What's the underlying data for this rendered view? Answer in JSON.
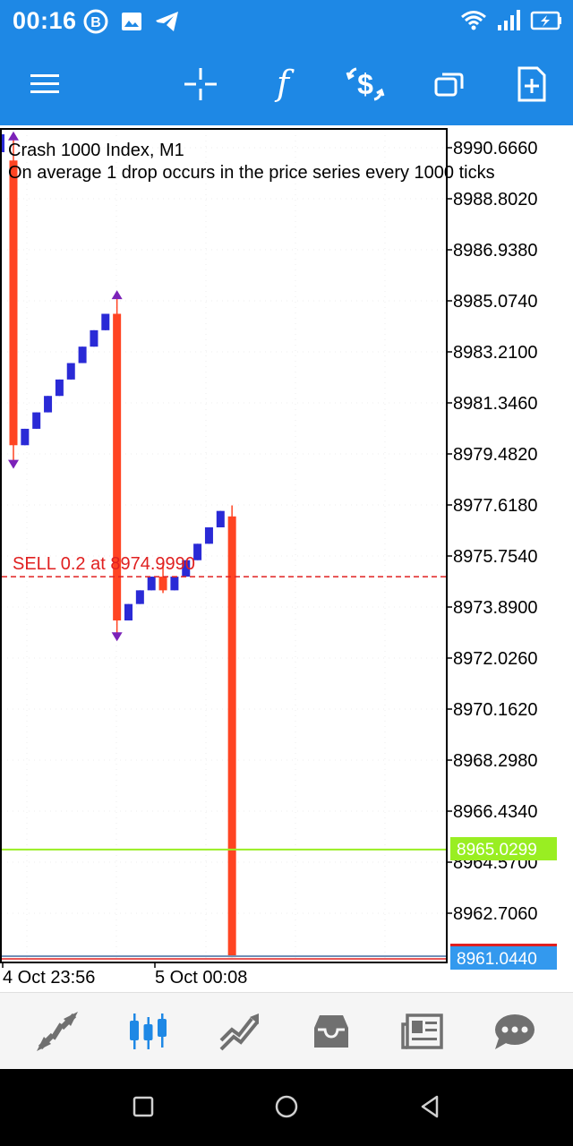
{
  "status_bar": {
    "time": "00:16",
    "left_icons": [
      "b-badge-icon",
      "image-icon",
      "telegram-icon"
    ],
    "right_icons": [
      "wifi-icon",
      "signal-icon",
      "battery-charging-icon"
    ]
  },
  "toolbar": {
    "buttons": [
      "menu-icon",
      "crosshair-icon",
      "indicators-icon",
      "trade-icon",
      "windows-icon",
      "new-order-icon"
    ]
  },
  "chart": {
    "symbol_title": "Crash 1000 Index, M1",
    "description": "On average 1 drop occurs in the price series every 1000 ticks",
    "order_label": "SELL 0.2 at 8974.9990",
    "bid_label": "8965.0299",
    "ask_label": "8961.0440",
    "colors": {
      "bull": "#2a2ad6",
      "bear": "#ff4422",
      "arrow": "#7b22b8",
      "order_line": "#e02020",
      "bid_line": "#99ee22",
      "ask_bg": "#3399ee"
    },
    "price_axis": [
      "8990.6660",
      "8988.8020",
      "8986.9380",
      "8985.0740",
      "8983.2100",
      "8981.3460",
      "8979.4820",
      "8977.6180",
      "8975.7540",
      "8973.8900",
      "8972.0260",
      "8970.1620",
      "8968.2980",
      "8966.4340",
      "8964.5700",
      "8962.7060"
    ],
    "time_axis": [
      "4 Oct 23:56",
      "5 Oct 00:08"
    ]
  },
  "chart_data": {
    "type": "candlestick",
    "ylim": [
      8960.8,
      8991.0
    ],
    "x_labels": [
      "4 Oct 23:56",
      "5 Oct 00:08"
    ],
    "candles": [
      {
        "o": 8990.2,
        "h": 8991.0,
        "l": 8979.2,
        "c": 8979.8,
        "dir": "down"
      },
      {
        "o": 8979.8,
        "h": 8980.4,
        "l": 8979.8,
        "c": 8980.4
      },
      {
        "o": 8980.4,
        "h": 8981.0,
        "l": 8980.4,
        "c": 8981.0
      },
      {
        "o": 8981.0,
        "h": 8981.6,
        "l": 8981.0,
        "c": 8981.6
      },
      {
        "o": 8981.6,
        "h": 8982.2,
        "l": 8981.6,
        "c": 8982.2
      },
      {
        "o": 8982.2,
        "h": 8982.8,
        "l": 8982.2,
        "c": 8982.8
      },
      {
        "o": 8982.8,
        "h": 8983.4,
        "l": 8982.8,
        "c": 8983.4
      },
      {
        "o": 8983.4,
        "h": 8984.0,
        "l": 8983.4,
        "c": 8984.0
      },
      {
        "o": 8984.0,
        "h": 8984.6,
        "l": 8984.0,
        "c": 8984.6
      },
      {
        "o": 8984.6,
        "h": 8985.2,
        "l": 8972.9,
        "c": 8973.4,
        "dir": "down"
      },
      {
        "o": 8973.4,
        "h": 8974.0,
        "l": 8973.4,
        "c": 8974.0
      },
      {
        "o": 8974.0,
        "h": 8974.5,
        "l": 8974.0,
        "c": 8974.5
      },
      {
        "o": 8974.5,
        "h": 8975.0,
        "l": 8974.5,
        "c": 8975.0
      },
      {
        "o": 8975.0,
        "h": 8975.5,
        "l": 8974.4,
        "c": 8974.5
      },
      {
        "o": 8974.5,
        "h": 8975.0,
        "l": 8974.5,
        "c": 8975.0
      },
      {
        "o": 8975.0,
        "h": 8975.6,
        "l": 8975.0,
        "c": 8975.6
      },
      {
        "o": 8975.6,
        "h": 8976.2,
        "l": 8975.6,
        "c": 8976.2
      },
      {
        "o": 8976.2,
        "h": 8976.8,
        "l": 8976.2,
        "c": 8976.8
      },
      {
        "o": 8976.8,
        "h": 8977.4,
        "l": 8976.8,
        "c": 8977.4
      },
      {
        "o": 8977.2,
        "h": 8977.6,
        "l": 8961.1,
        "c": 8961.1
      }
    ],
    "order_price": 8974.999,
    "bid_price": 8965.0299,
    "ask_price": 8961.044
  },
  "bottom_nav": {
    "items": [
      "quotes-icon",
      "chart-icon",
      "trade-icon",
      "history-icon",
      "news-icon",
      "messages-icon"
    ],
    "active_index": 1
  }
}
